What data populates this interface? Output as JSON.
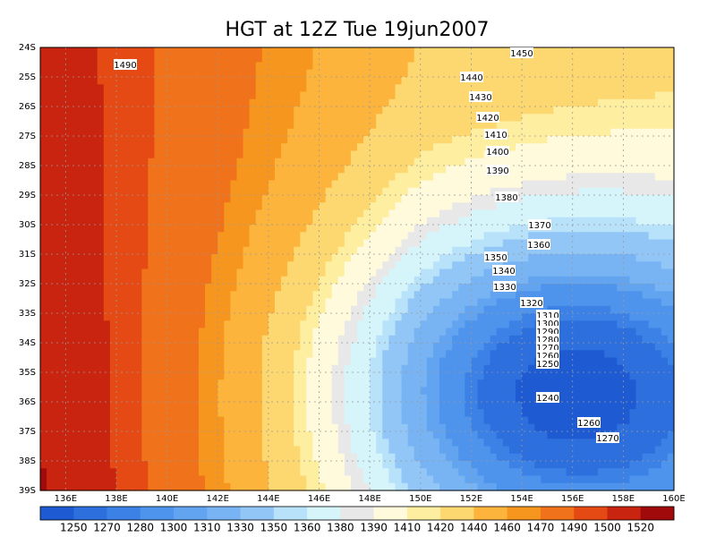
{
  "title": "HGT at 12Z Tue 19jun2007",
  "map": {
    "lon_range": [
      135,
      160
    ],
    "lat_range": [
      -24,
      -39
    ],
    "lat_ticks": [
      {
        "value": -24,
        "label": "24S"
      },
      {
        "value": -25,
        "label": "25S"
      },
      {
        "value": -26,
        "label": "26S"
      },
      {
        "value": -27,
        "label": "27S"
      },
      {
        "value": -28,
        "label": "28S"
      },
      {
        "value": -29,
        "label": "29S"
      },
      {
        "value": -30,
        "label": "30S"
      },
      {
        "value": -31,
        "label": "31S"
      },
      {
        "value": -32,
        "label": "32S"
      },
      {
        "value": -33,
        "label": "33S"
      },
      {
        "value": -34,
        "label": "34S"
      },
      {
        "value": -35,
        "label": "35S"
      },
      {
        "value": -36,
        "label": "36S"
      },
      {
        "value": -37,
        "label": "37S"
      },
      {
        "value": -38,
        "label": "38S"
      },
      {
        "value": -39,
        "label": "39S"
      }
    ],
    "lon_ticks": [
      {
        "value": 136,
        "label": "136E"
      },
      {
        "value": 138,
        "label": "138E"
      },
      {
        "value": 140,
        "label": "140E"
      },
      {
        "value": 142,
        "label": "142E"
      },
      {
        "value": 144,
        "label": "144E"
      },
      {
        "value": 146,
        "label": "146E"
      },
      {
        "value": 148,
        "label": "148E"
      },
      {
        "value": 150,
        "label": "150E"
      },
      {
        "value": 152,
        "label": "152E"
      },
      {
        "value": 154,
        "label": "154E"
      },
      {
        "value": 156,
        "label": "156E"
      },
      {
        "value": 158,
        "label": "158E"
      },
      {
        "value": 160,
        "label": "160E"
      }
    ],
    "contour_labels": [
      1490,
      1450,
      1440,
      1430,
      1420,
      1410,
      1400,
      1390,
      1380,
      1370,
      1360,
      1350,
      1340,
      1330,
      1320,
      1310,
      1300,
      1290,
      1280,
      1270,
      1260,
      1250,
      1240,
      1260,
      1270
    ]
  },
  "colorbar": {
    "levels": [
      1250,
      1270,
      1280,
      1300,
      1310,
      1330,
      1350,
      1360,
      1380,
      1390,
      1410,
      1420,
      1440,
      1460,
      1470,
      1490,
      1500,
      1520
    ],
    "colors": [
      "#1e5ad2",
      "#2c6fdd",
      "#3c82e6",
      "#4e94ec",
      "#62a4f0",
      "#78b4f3",
      "#91c6f7",
      "#b8e2fa",
      "#d6f5fa",
      "#e8e8e8",
      "#fffadc",
      "#fdeea0",
      "#fdd870",
      "#fcb43c",
      "#f7961e",
      "#f0721a",
      "#e64a14",
      "#c8240f",
      "#a00a0a"
    ]
  }
}
